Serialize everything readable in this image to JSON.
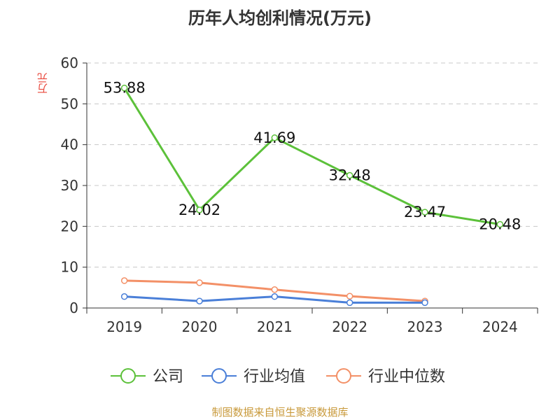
{
  "chart_data": {
    "type": "line",
    "title": "历年人均创利情况(万元)",
    "ylabel": "万元",
    "xlabel": "",
    "categories": [
      "2019",
      "2020",
      "2021",
      "2022",
      "2023",
      "2024"
    ],
    "ylim": [
      0,
      60
    ],
    "yticks": [
      0,
      10,
      20,
      30,
      40,
      50,
      60
    ],
    "grid": true,
    "legend_position": "bottom",
    "series": [
      {
        "name": "公司",
        "color": "#5cc13a",
        "values": [
          53.88,
          24.02,
          41.69,
          32.48,
          23.47,
          20.48
        ],
        "labels": [
          "53.88",
          "24.02",
          "41.69",
          "32.48",
          "23.47",
          "20.48"
        ]
      },
      {
        "name": "行业均值",
        "color": "#4a7fd8",
        "values": [
          2.8,
          1.7,
          2.8,
          1.3,
          1.3,
          null
        ]
      },
      {
        "name": "行业中位数",
        "color": "#f39067",
        "values": [
          6.7,
          6.2,
          4.5,
          2.9,
          1.7,
          null
        ]
      }
    ]
  },
  "footer": {
    "source": "制图数据来自恒生聚源数据库"
  }
}
